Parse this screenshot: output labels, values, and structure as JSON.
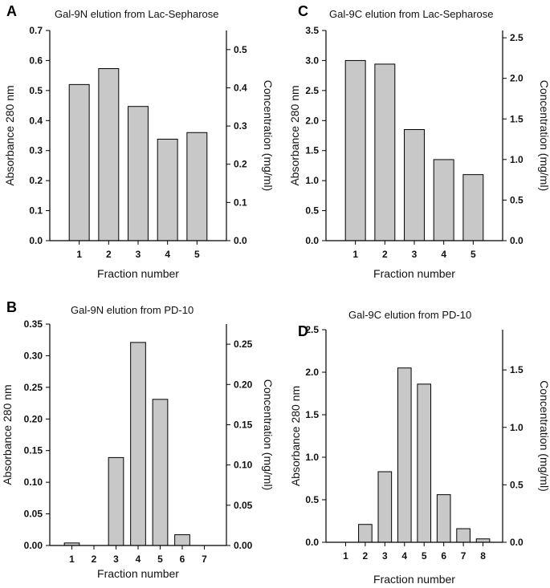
{
  "chart_data": [
    {
      "panel": "A",
      "type": "bar",
      "title": "Gal-9N elution from Lac-Sepharose",
      "xlabel": "Fraction number",
      "ylabel": "Absorbance 280 nm",
      "y2label": "Concentration (mg/ml)",
      "categories": [
        "1",
        "2",
        "3",
        "4",
        "5"
      ],
      "values": [
        0.52,
        0.573,
        0.447,
        0.338,
        0.36
      ],
      "ylim": [
        0,
        0.7
      ],
      "yticks": [
        "0.0",
        "0.1",
        "0.2",
        "0.3",
        "0.4",
        "0.5",
        "0.6",
        "0.7"
      ],
      "y2lim": [
        0,
        0.55
      ],
      "y2ticks": [
        "0.0",
        "0.1",
        "0.2",
        "0.3",
        "0.4",
        "0.5"
      ],
      "bar_color": "#c8c8c8"
    },
    {
      "panel": "C",
      "type": "bar",
      "title": "Gal-9C elution from Lac-Sepharose",
      "xlabel": "Fraction number",
      "ylabel": "Absorbance 280 nm",
      "y2label": "Concentration (mg/ml)",
      "categories": [
        "1",
        "2",
        "3",
        "4",
        "5"
      ],
      "values": [
        3.0,
        2.94,
        1.85,
        1.35,
        1.1
      ],
      "ylim": [
        0,
        3.5
      ],
      "yticks": [
        "0.0",
        "0.5",
        "1.0",
        "1.5",
        "2.0",
        "2.5",
        "3.0",
        "3.5"
      ],
      "y2lim": [
        0,
        2.59
      ],
      "y2ticks": [
        "0.0",
        "0.5",
        "1.0",
        "1.5",
        "2.0",
        "2.5"
      ],
      "bar_color": "#c8c8c8"
    },
    {
      "panel": "B",
      "type": "bar",
      "title": "Gal-9N elution from PD-10",
      "xlabel": "Fraction number",
      "ylabel": "Absorbance 280 nm",
      "y2label": "Concentration (mg/ml)",
      "categories": [
        "1",
        "2",
        "3",
        "4",
        "5",
        "6",
        "7"
      ],
      "values": [
        0.004,
        0.0,
        0.139,
        0.321,
        0.231,
        0.017,
        0.0
      ],
      "ylim": [
        0,
        0.35
      ],
      "yticks": [
        "0.00",
        "0.05",
        "0.10",
        "0.15",
        "0.20",
        "0.25",
        "0.30",
        "0.35"
      ],
      "y2lim": [
        0,
        0.275
      ],
      "y2ticks": [
        "0.00",
        "0.05",
        "0.10",
        "0.15",
        "0.20",
        "0.25"
      ],
      "bar_color": "#c8c8c8"
    },
    {
      "panel": "D",
      "type": "bar",
      "title": "Gal-9C elution from PD-10",
      "xlabel": "Fraction number",
      "ylabel": "Absorbance 280 nm",
      "y2label": "Concentration (mg/ml)",
      "categories": [
        "1",
        "2",
        "3",
        "4",
        "5",
        "6",
        "7",
        "8"
      ],
      "values": [
        0.0,
        0.21,
        0.83,
        2.05,
        1.86,
        0.56,
        0.16,
        0.04
      ],
      "ylim": [
        0,
        2.5
      ],
      "yticks": [
        "0.0",
        "0.5",
        "1.0",
        "1.5",
        "2.0",
        "2.5"
      ],
      "y2lim": [
        0,
        1.85
      ],
      "y2ticks": [
        "0.0",
        "0.5",
        "1.0",
        "1.5"
      ],
      "bar_color": "#c8c8c8"
    }
  ]
}
